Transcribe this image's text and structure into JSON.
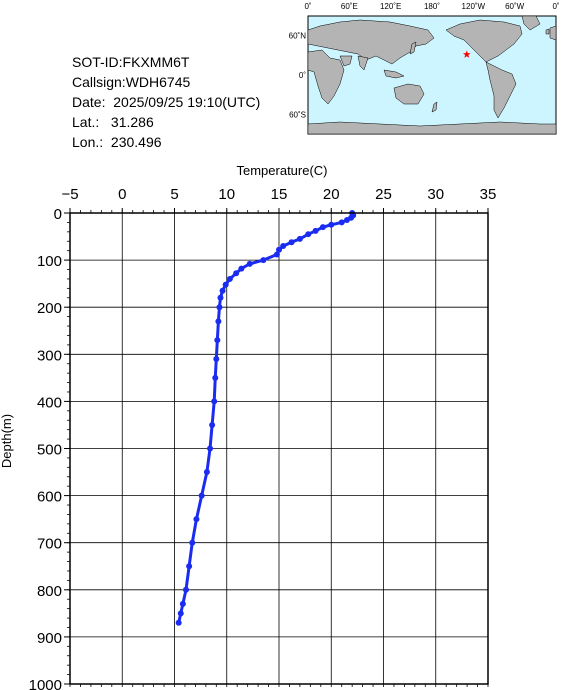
{
  "metadata": {
    "sot_id": "SOT-ID:FKXMM6T",
    "callsign": "Callsign:WDH6745",
    "date": "Date:  2025/09/25 19:10(UTC)",
    "lat": "Lat.:   31.286",
    "lon": "Lon.:  230.496"
  },
  "map": {
    "top_labels": [
      "0˚",
      "60˚E",
      "120˚E",
      "180˚",
      "120˚W",
      "60˚W",
      "0˚"
    ],
    "left_labels": [
      "60˚N",
      "0˚",
      "60˚S"
    ],
    "ocean_color": "#ccf5ff",
    "land_color": "#b4b4b4",
    "marker": {
      "lon": 230.496,
      "lat": 31.286,
      "symbol": "star",
      "color": "#ff0000"
    }
  },
  "chart_data": {
    "type": "line",
    "title": "",
    "xlabel": "Temperature(C)",
    "ylabel": "Depth(m)",
    "xlim": [
      -5,
      35
    ],
    "ylim": [
      0,
      1000
    ],
    "y_inverted": true,
    "x_axis_position": "top",
    "x_ticks": [
      -5,
      0,
      5,
      10,
      15,
      20,
      25,
      30,
      35
    ],
    "y_ticks": [
      0,
      100,
      200,
      300,
      400,
      500,
      600,
      700,
      800,
      900,
      1000
    ],
    "grid": true,
    "series": [
      {
        "color": "#1a2cf0",
        "marker": "circle",
        "points": [
          [
            22.0,
            0
          ],
          [
            22.1,
            5
          ],
          [
            21.9,
            10
          ],
          [
            21.5,
            15
          ],
          [
            21.0,
            20
          ],
          [
            20.0,
            25
          ],
          [
            19.2,
            30
          ],
          [
            18.5,
            38
          ],
          [
            17.8,
            45
          ],
          [
            17.0,
            55
          ],
          [
            16.2,
            62
          ],
          [
            15.4,
            70
          ],
          [
            15.0,
            78
          ],
          [
            14.8,
            88
          ],
          [
            13.5,
            100
          ],
          [
            12.2,
            108
          ],
          [
            11.4,
            118
          ],
          [
            10.9,
            128
          ],
          [
            10.3,
            140
          ],
          [
            9.9,
            152
          ],
          [
            9.6,
            165
          ],
          [
            9.4,
            180
          ],
          [
            9.3,
            200
          ],
          [
            9.2,
            230
          ],
          [
            9.1,
            270
          ],
          [
            9.0,
            310
          ],
          [
            8.9,
            350
          ],
          [
            8.8,
            400
          ],
          [
            8.6,
            450
          ],
          [
            8.4,
            500
          ],
          [
            8.1,
            550
          ],
          [
            7.6,
            600
          ],
          [
            7.1,
            650
          ],
          [
            6.7,
            700
          ],
          [
            6.4,
            750
          ],
          [
            6.1,
            800
          ],
          [
            5.8,
            830
          ],
          [
            5.6,
            850
          ],
          [
            5.4,
            870
          ]
        ]
      }
    ]
  }
}
